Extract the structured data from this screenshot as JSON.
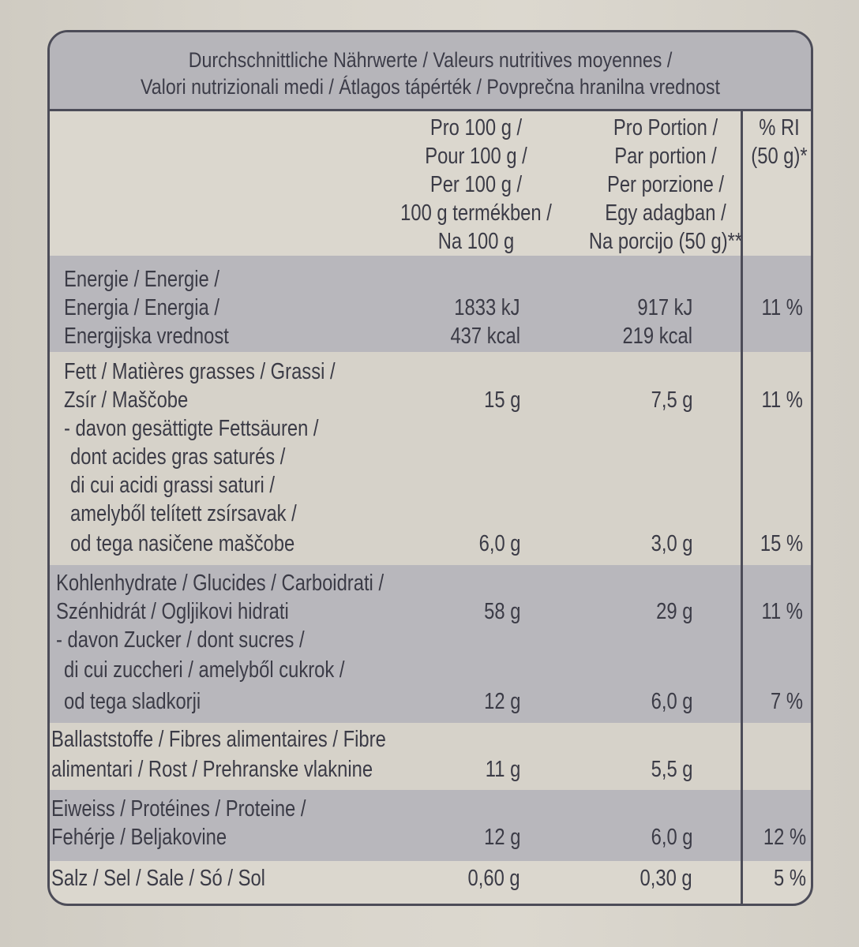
{
  "header": {
    "line1": "Durchschnittliche Nährwerte / Valeurs nutritives moyennes /",
    "line2": "Valori nutrizionali medi / Átlagos tápérték / Povprečna hranilna vrednost"
  },
  "columns": {
    "per100": [
      "Pro 100 g /",
      "Pour 100 g /",
      "Per 100 g /",
      "100 g termékben /",
      "Na 100 g"
    ],
    "portion": [
      "Pro Portion /",
      "Par portion /",
      "Per porzione /",
      "Egy adagban /",
      "Na porcijo (50 g)**"
    ],
    "ri": [
      "% RI",
      "(50 g)*"
    ]
  },
  "rows": {
    "energy": {
      "label": [
        "Energie / Energie /",
        "Energia / Energia /",
        "Energijska vrednost"
      ],
      "per100_kj": "1833 kJ",
      "per100_kcal": "437 kcal",
      "portion_kj": "917 kJ",
      "portion_kcal": "219 kcal",
      "ri": "11 %"
    },
    "fat": {
      "label": [
        "Fett / Matières grasses / Grassi /",
        "Zsír / Maščobe"
      ],
      "per100": "15 g",
      "portion": "7,5 g",
      "ri": "11 %"
    },
    "saturated": {
      "label": [
        "- davon gesättigte Fettsäuren /",
        "dont acides gras saturés /",
        "di cui acidi grassi saturi /",
        "amelyből telített zsírsavak /",
        "od tega nasičene maščobe"
      ],
      "per100": "6,0 g",
      "portion": "3,0 g",
      "ri": "15 %"
    },
    "carbs": {
      "label": [
        "Kohlenhydrate / Glucides / Carboidrati /",
        "Szénhidrát / Ogljikovi hidrati"
      ],
      "per100": "58 g",
      "portion": "29 g",
      "ri": "11 %"
    },
    "sugars": {
      "label": [
        "- davon Zucker / dont sucres /",
        "di cui zuccheri / amelyből cukrok /",
        "od tega sladkorji"
      ],
      "per100": "12 g",
      "portion": "6,0 g",
      "ri": "7 %"
    },
    "fibre": {
      "label": [
        "Ballaststoffe / Fibres alimentaires / Fibre",
        "alimentari / Rost / Prehranske vlaknine"
      ],
      "per100": "11 g",
      "portion": "5,5 g",
      "ri": ""
    },
    "protein": {
      "label": [
        "Eiweiss / Protéines / Proteine /",
        "Fehérje / Beljakovine"
      ],
      "per100": "12 g",
      "portion": "6,0 g",
      "ri": "12 %"
    },
    "salt": {
      "label": [
        "Salz / Sel / Sale / Só / Sol"
      ],
      "per100": "0,60 g",
      "portion": "0,30 g",
      "ri": "5 %"
    }
  }
}
